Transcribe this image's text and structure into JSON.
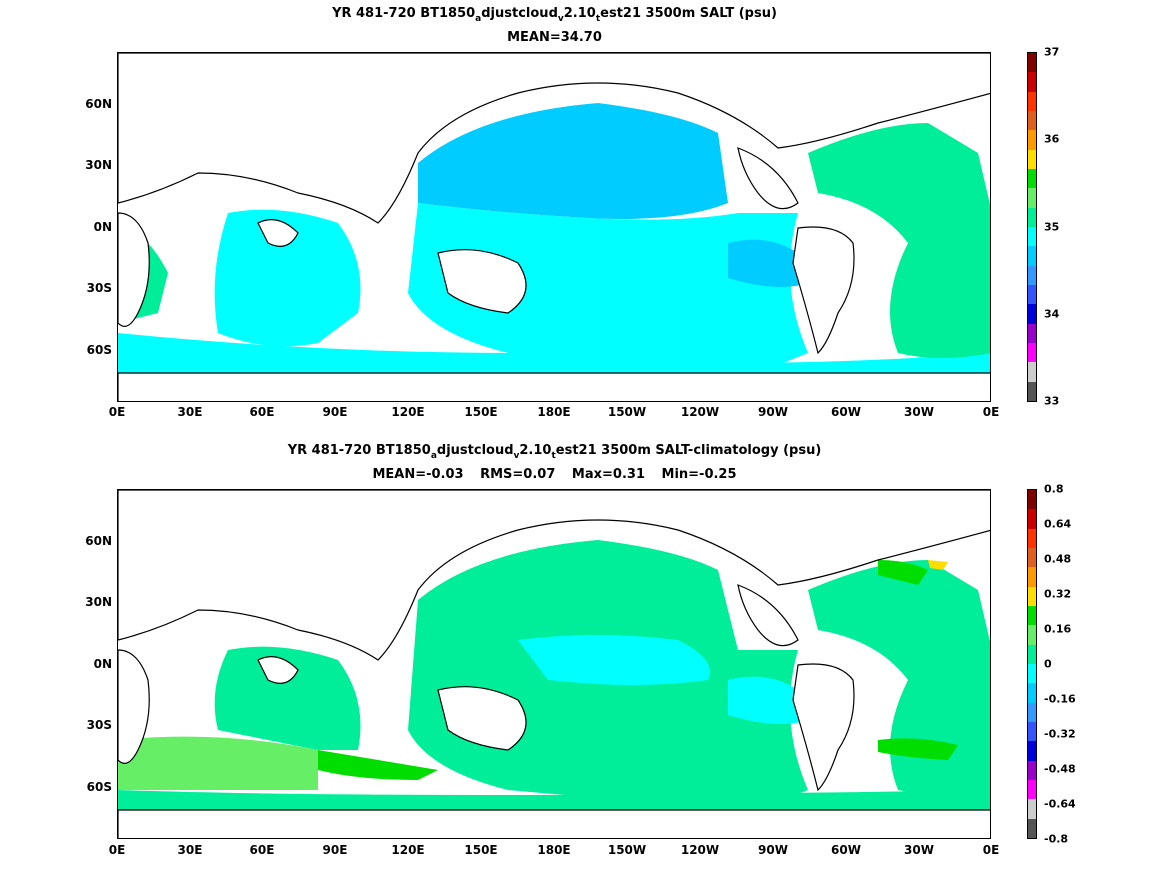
{
  "panel1": {
    "title_parts": [
      "YR 481-720 BT1850",
      "a",
      "djustcloud",
      "v",
      "2.10",
      "t",
      "est21 3500m SALT (psu)"
    ],
    "stats": [
      "MEAN=34.70"
    ],
    "colorbar": {
      "labels": [
        "37",
        "36",
        "35",
        "34",
        "33"
      ],
      "colors": [
        "#800000",
        "#cc0000",
        "#ff3300",
        "#e06020",
        "#ff9900",
        "#ffdd00",
        "#00dd00",
        "#66ee66",
        "#00ee99",
        "#00ffff",
        "#00ccff",
        "#3399ff",
        "#3355ff",
        "#0000dd",
        "#9900cc",
        "#ff00ff",
        "#cccccc",
        "#555555"
      ]
    }
  },
  "panel2": {
    "title_parts": [
      "YR 481-720 BT1850",
      "a",
      "djustcloud",
      "v",
      "2.10",
      "t",
      "est21 3500m SALT-climatology (psu)"
    ],
    "stats": [
      "MEAN=-0.03",
      "RMS=0.07",
      "Max=0.31",
      "Min=-0.25"
    ],
    "colorbar": {
      "labels": [
        "0.8",
        "0.64",
        "0.48",
        "0.32",
        "0.16",
        "0",
        "-0.16",
        "-0.32",
        "-0.48",
        "-0.64",
        "-0.8"
      ],
      "colors": [
        "#800000",
        "#cc0000",
        "#ff3300",
        "#e06020",
        "#ff9900",
        "#ffdd00",
        "#00dd00",
        "#66ee66",
        "#00ee99",
        "#00ffff",
        "#00ccff",
        "#3399ff",
        "#3355ff",
        "#0000dd",
        "#9900cc",
        "#ff00ff",
        "#cccccc",
        "#555555"
      ]
    }
  },
  "axes": {
    "x_ticks": [
      "0E",
      "30E",
      "60E",
      "90E",
      "120E",
      "150E",
      "180E",
      "150W",
      "120W",
      "90W",
      "60W",
      "30W",
      "0E"
    ],
    "y_ticks": [
      "60N",
      "30N",
      "0N",
      "30S",
      "60S"
    ]
  }
}
